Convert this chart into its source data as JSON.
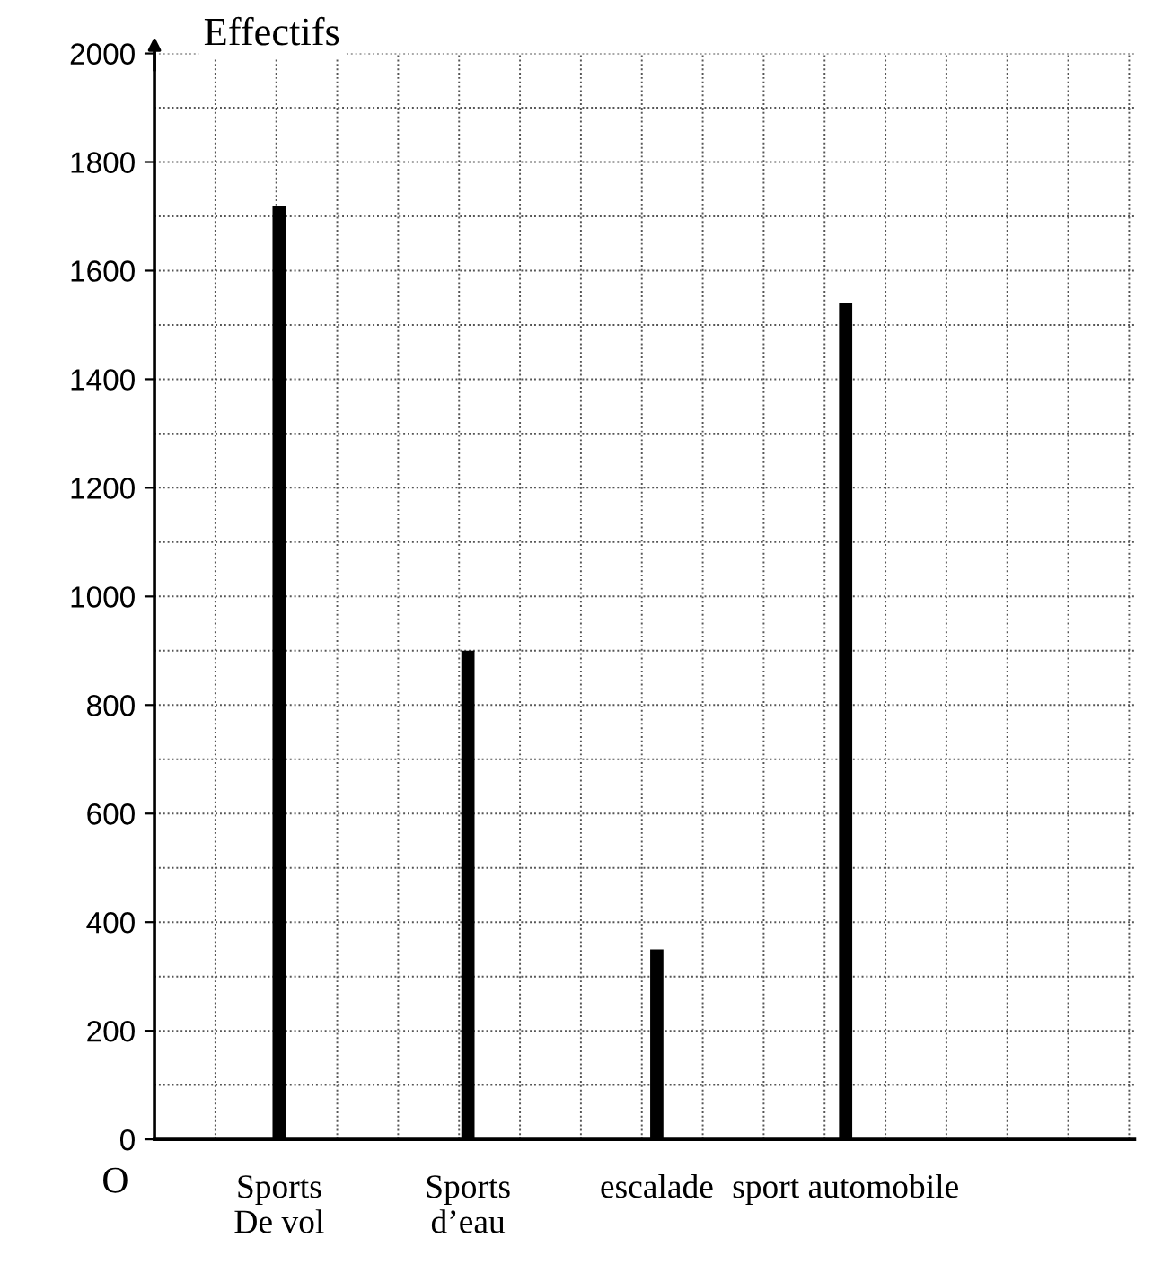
{
  "chart_data": {
    "type": "bar",
    "ylabel": "Effectifs",
    "categories": [
      "Sports\nDe vol",
      "Sports\nd’eau",
      "escalade",
      "sport automobile"
    ],
    "values": [
      1720,
      900,
      350,
      1540
    ],
    "color": "#000000",
    "ylim": [
      0,
      2000
    ],
    "yticks": [
      0,
      200,
      400,
      600,
      800,
      1000,
      1200,
      1400,
      1600,
      1800,
      2000
    ],
    "grid": true,
    "annotations": [
      "O"
    ]
  }
}
